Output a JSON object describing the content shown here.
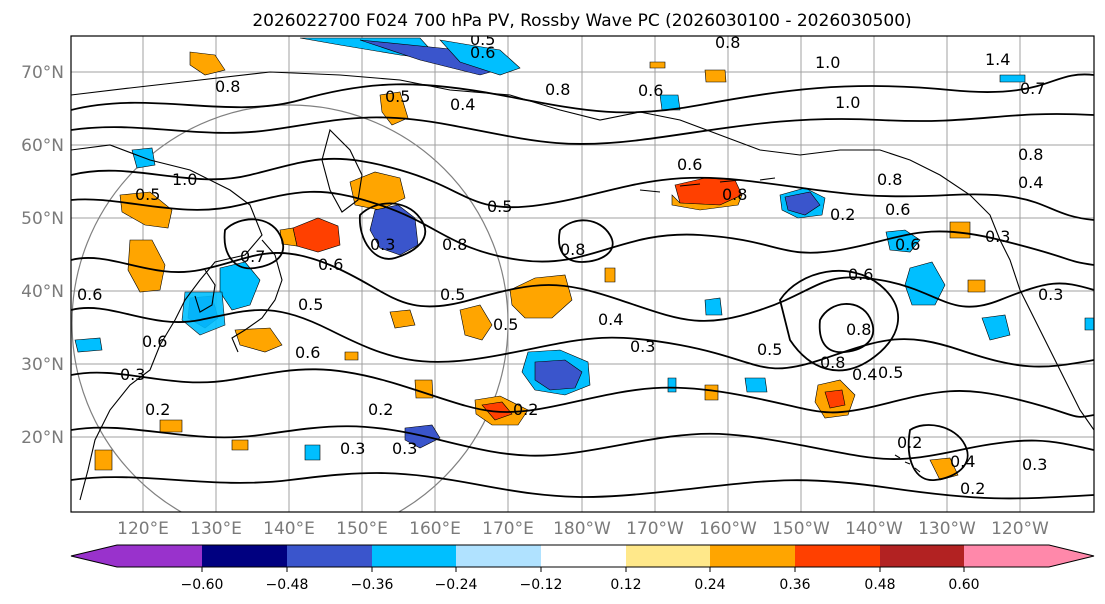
{
  "title": "2026022700 F024 700 hPa PV, Rossby Wave PC (2026030100 - 2026030500)",
  "latitude_labels": [
    "70°N",
    "60°N",
    "50°N",
    "40°N",
    "30°N",
    "20°N"
  ],
  "longitude_labels": [
    "120°E",
    "130°E",
    "140°E",
    "150°E",
    "160°E",
    "170°E",
    "180°W",
    "170°W",
    "160°W",
    "150°W",
    "140°W",
    "130°W",
    "120°W"
  ],
  "contour_labels": [
    "0.5",
    "0.6",
    "0.8",
    "1.0",
    "1.4",
    "0.7",
    "0.5",
    "0.4",
    "0.8",
    "1.0",
    "0.6",
    "0.8",
    "1.0",
    "0.6",
    "0.4",
    "0.8",
    "0.8",
    "0.6",
    "0.5",
    "0.8",
    "0.6",
    "0.8",
    "0.8",
    "0.3",
    "0.2",
    "0.5",
    "0.3",
    "0.6",
    "0.7",
    "0.6",
    "0.5",
    "0.6",
    "0.5",
    "0.4",
    "0.5",
    "0.3",
    "0.6",
    "0.8",
    "0.5",
    "0.8",
    "0.4",
    "0.5",
    "0.3",
    "0.2",
    "0.2",
    "0.3",
    "0.3",
    "0.2",
    "0.4",
    "0.2",
    "0.3",
    "0.3",
    "0.6",
    "0.2"
  ],
  "colorbar": {
    "ticks": [
      "−0.60",
      "−0.48",
      "−0.36",
      "−0.24",
      "−0.12",
      "0.12",
      "0.24",
      "0.36",
      "0.48",
      "0.60"
    ],
    "colors": [
      "#9932cc",
      "#000080",
      "#3a55cc",
      "#00bfff",
      "#b0e2ff",
      "#ffffff",
      "#ffe88a",
      "#ffa500",
      "#ff4000",
      "#b22222",
      "#ff88aa"
    ]
  },
  "anomaly_colors": {
    "neg_strong": "#3a55cc",
    "neg_medium": "#00bfff",
    "neg_weak": "#b0e2ff",
    "pos_weak": "#ffe88a",
    "pos_medium": "#ffa500",
    "pos_strong": "#ff4000"
  }
}
